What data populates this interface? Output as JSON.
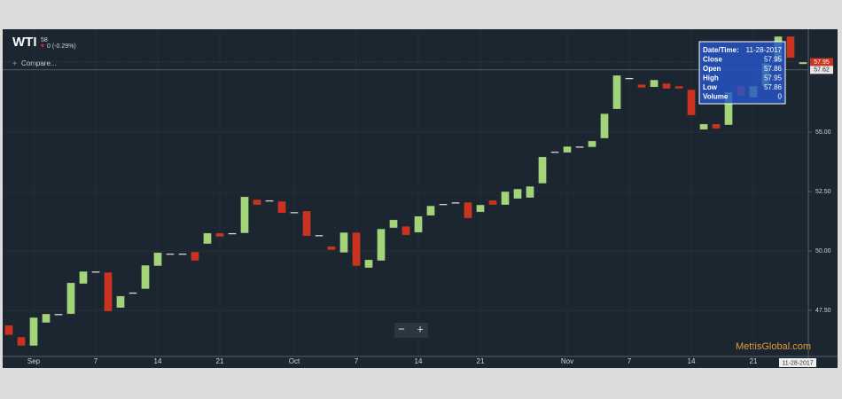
{
  "header": {
    "symbol": "WTI",
    "price": "58",
    "change": "0 (-0.29%)",
    "compare": "Compare...",
    "zoom_out": "−",
    "zoom_in": "+",
    "watermark": "MettisGlobal.com",
    "date_tag": "11-28-2017"
  },
  "tooltip": [
    {
      "label": "Date/Time:",
      "value": "11-28-2017"
    },
    {
      "label": "Close",
      "value": "57.95"
    },
    {
      "label": "Open",
      "value": "57.86"
    },
    {
      "label": "High",
      "value": "57.95"
    },
    {
      "label": "Low",
      "value": "57.86"
    },
    {
      "label": "Volume",
      "value": "0"
    }
  ],
  "chart_data": {
    "type": "candlestick",
    "up_color": "#a3d47a",
    "down_color": "#c9331f",
    "flat_color": "#e6e6e6",
    "grid": true,
    "categories": [
      null,
      null,
      "Sep",
      null,
      null,
      null,
      null,
      "7",
      null,
      null,
      null,
      null,
      "14",
      null,
      null,
      null,
      null,
      "21",
      null,
      null,
      null,
      null,
      null,
      "Oct",
      null,
      null,
      null,
      null,
      "7",
      null,
      null,
      null,
      null,
      "14",
      null,
      null,
      null,
      null,
      "21",
      null,
      null,
      null,
      null,
      null,
      null,
      "Nov",
      null,
      null,
      null,
      null,
      "7",
      null,
      null,
      null,
      null,
      "14",
      null,
      null,
      null,
      null,
      "21",
      null,
      null,
      null,
      null
    ],
    "open": [
      46.87,
      46.38,
      46.01,
      46.98,
      47.35,
      47.35,
      48.62,
      49.14,
      49.1,
      47.61,
      48.25,
      48.4,
      49.37,
      49.89,
      49.89,
      49.96,
      50.3,
      50.75,
      50.75,
      50.75,
      52.16,
      52.13,
      52.09,
      51.64,
      51.68,
      50.67,
      50.19,
      49.93,
      50.78,
      49.29,
      49.59,
      50.97,
      51.04,
      50.78,
      51.49,
      51.98,
      52.05,
      52.05,
      51.64,
      52.13,
      51.94,
      52.2,
      52.24,
      52.84,
      54.18,
      54.14,
      54.4,
      54.37,
      54.74,
      55.97,
      57.28,
      57.01,
      56.9,
      57.05,
      56.94,
      56.79,
      55.11,
      55.34,
      55.3,
      56.94,
      56.46,
      56.94,
      57.95,
      59.03,
      57.86
    ],
    "close": [
      46.46,
      46.01,
      47.2,
      47.35,
      47.35,
      48.66,
      49.14,
      49.14,
      47.46,
      48.1,
      48.25,
      49.4,
      49.93,
      49.89,
      49.89,
      49.59,
      50.75,
      50.6,
      50.75,
      52.28,
      51.94,
      52.13,
      51.6,
      51.64,
      50.63,
      50.67,
      50.04,
      50.78,
      49.37,
      49.63,
      50.93,
      51.31,
      50.67,
      51.46,
      51.9,
      51.98,
      52.05,
      51.38,
      51.94,
      51.94,
      52.5,
      52.61,
      52.72,
      53.96,
      54.18,
      54.4,
      54.4,
      54.63,
      55.78,
      57.39,
      57.28,
      56.87,
      57.2,
      56.83,
      56.83,
      55.71,
      55.34,
      55.15,
      56.68,
      56.53,
      56.94,
      57.9,
      59.03,
      58.13,
      57.95
    ],
    "ylim": [
      45.56,
      59.33
    ],
    "yticks": [
      {
        "value": 47.5,
        "label": "47.50"
      },
      {
        "value": 50,
        "label": "50.00"
      },
      {
        "value": 52.5,
        "label": "52.50"
      },
      {
        "value": 55,
        "label": "55.00"
      }
    ],
    "price_tags": [
      {
        "value": 57.95,
        "label": "57.95",
        "color": "#c9331f"
      },
      {
        "value": 57.62,
        "label": "57.62",
        "color": "#e6e6e6"
      }
    ]
  }
}
